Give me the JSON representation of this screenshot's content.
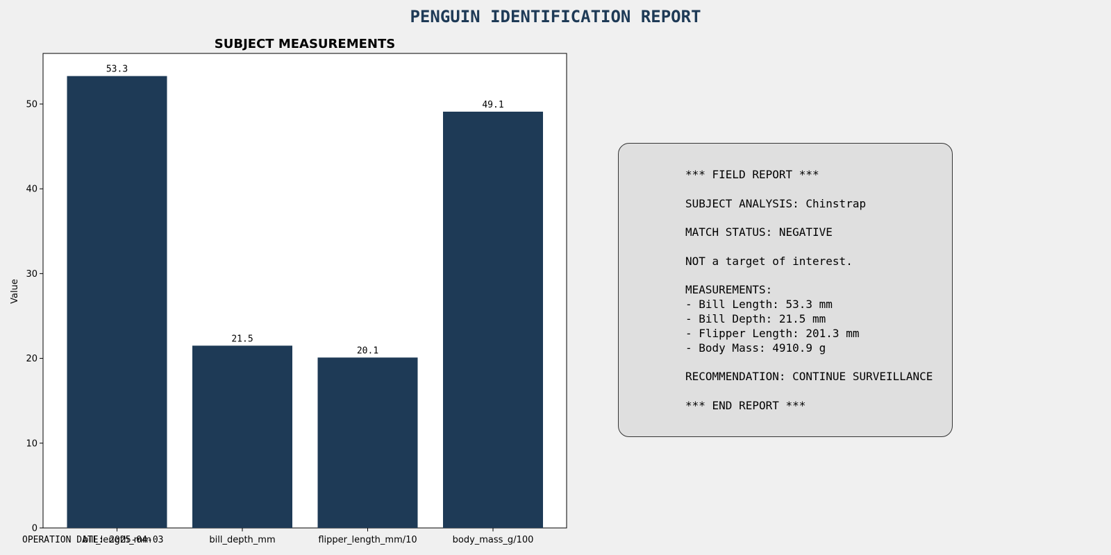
{
  "report_title": "PENGUIN IDENTIFICATION REPORT",
  "colors": {
    "bar": "#1e3a56",
    "background": "#f0f0f0",
    "panel": "#dfdfdf"
  },
  "chart_data": {
    "type": "bar",
    "title": "SUBJECT MEASUREMENTS",
    "xlabel": "",
    "ylabel": "Value",
    "categories": [
      "bill_length_mm",
      "bill_depth_mm",
      "flipper_length_mm/10",
      "body_mass_g/100"
    ],
    "values": [
      53.3,
      21.5,
      20.1,
      49.1
    ],
    "data_labels": [
      "53.3",
      "21.5",
      "20.1",
      "49.1"
    ],
    "ylim": [
      0,
      55.97
    ],
    "yticks": [
      0,
      10,
      20,
      30,
      40,
      50
    ],
    "grid": false,
    "legend": "none"
  },
  "field_report": {
    "header": "*** FIELD REPORT ***",
    "subject_analysis": "SUBJECT ANALYSIS: Chinstrap",
    "match_status": "MATCH STATUS: NEGATIVE",
    "target_note": "NOT a target of interest.",
    "measurements_heading": "MEASUREMENTS:",
    "bill_length": "- Bill Length: 53.3 mm",
    "bill_depth": "- Bill Depth: 21.5 mm",
    "flipper_length": "- Flipper Length: 201.3 mm",
    "body_mass": "- Body Mass: 4910.9 g",
    "recommendation": "RECOMMENDATION: CONTINUE SURVEILLANCE",
    "footer": "*** END REPORT ***"
  },
  "operation_date": "OPERATION DATE: 2025-04-03"
}
